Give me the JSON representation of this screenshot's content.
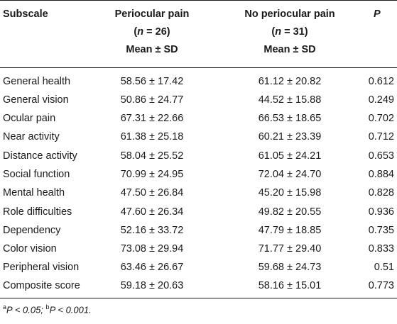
{
  "headers": {
    "subscale": "Subscale",
    "periocular_line1": "Periocular pain",
    "periocular_n_label": "n",
    "periocular_n_value": " = 26)",
    "periocular_stat": "Mean ± SD",
    "no_periocular_line1": "No periocular pain",
    "no_periocular_n_label": "n",
    "no_periocular_n_value": " = 31)",
    "no_periocular_stat": "Mean ± SD",
    "p": "P"
  },
  "rows": [
    {
      "subscale": "General health",
      "periocular": "58.56 ± 17.42",
      "no_periocular": "61.12 ± 20.82",
      "p": "0.612"
    },
    {
      "subscale": "General vision",
      "periocular": "50.86 ± 24.77",
      "no_periocular": "44.52 ± 15.88",
      "p": "0.249"
    },
    {
      "subscale": "Ocular pain",
      "periocular": "67.31 ± 22.66",
      "no_periocular": "66.53 ± 18.65",
      "p": "0.702"
    },
    {
      "subscale": "Near activity",
      "periocular": "61.38 ± 25.18",
      "no_periocular": "60.21 ± 23.39",
      "p": "0.712"
    },
    {
      "subscale": "Distance activity",
      "periocular": "58.04 ± 25.52",
      "no_periocular": "61.05 ± 24.21",
      "p": "0.653"
    },
    {
      "subscale": "Social function",
      "periocular": "70.99 ± 24.95",
      "no_periocular": "72.04 ± 24.70",
      "p": "0.884"
    },
    {
      "subscale": "Mental health",
      "periocular": "47.50 ± 26.84",
      "no_periocular": "45.20 ± 15.98",
      "p": "0.828"
    },
    {
      "subscale": "Role difficulties",
      "periocular": "47.60 ± 26.34",
      "no_periocular": "49.82 ± 20.55",
      "p": "0.936"
    },
    {
      "subscale": "Dependency",
      "periocular": "52.16 ± 33.72",
      "no_periocular": "47.79 ± 18.85",
      "p": "0.735"
    },
    {
      "subscale": "Color vision",
      "periocular": "73.08 ± 29.94",
      "no_periocular": "71.77 ± 29.40",
      "p": "0.833"
    },
    {
      "subscale": "Peripheral vision",
      "periocular": "63.46 ± 26.67",
      "no_periocular": "59.68 ± 24.73",
      "p": "0.51"
    },
    {
      "subscale": "Composite score",
      "periocular": "59.18 ± 20.63",
      "no_periocular": "58.16 ± 15.01",
      "p": "0.773"
    }
  ],
  "footnote": {
    "a_mark": "a",
    "a_text": "P < 0.05; ",
    "b_mark": "b",
    "b_text": "P < 0.001."
  }
}
